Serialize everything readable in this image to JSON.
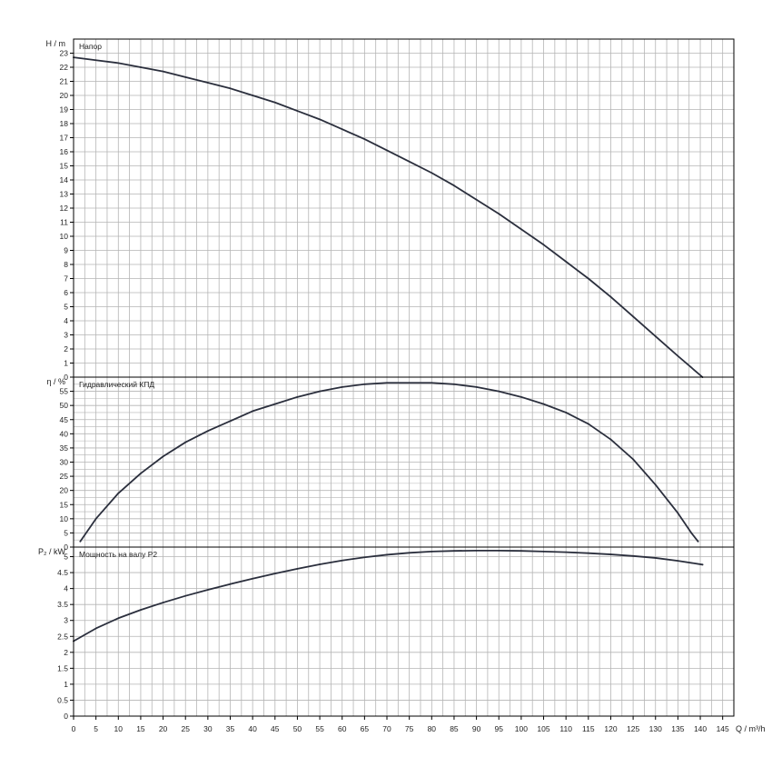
{
  "chart_data": {
    "type": "line",
    "x_axis": {
      "label": "Q / m³/h",
      "range": [
        0,
        145
      ],
      "ticks": [
        0,
        5,
        10,
        15,
        20,
        25,
        30,
        35,
        40,
        45,
        50,
        55,
        60,
        65,
        70,
        75,
        80,
        85,
        90,
        95,
        100,
        105,
        110,
        115,
        120,
        125,
        130,
        135,
        140,
        145
      ]
    },
    "grid": true,
    "colors": {
      "curve": "#2b2f3d",
      "grid": "#b5b5b5",
      "frame": "#000000"
    },
    "panels": [
      {
        "id": "head",
        "title": "Напор",
        "ylabel": "H / m",
        "ylim": [
          0,
          24
        ],
        "yticks": [
          0,
          1,
          2,
          3,
          4,
          5,
          6,
          7,
          8,
          9,
          10,
          11,
          12,
          13,
          14,
          15,
          16,
          17,
          18,
          19,
          20,
          21,
          22,
          23
        ],
        "series": {
          "x": [
            0,
            5,
            10,
            15,
            20,
            25,
            30,
            35,
            40,
            45,
            50,
            55,
            60,
            65,
            70,
            75,
            80,
            85,
            90,
            95,
            100,
            105,
            110,
            115,
            120,
            125,
            130,
            135,
            140.5
          ],
          "y": [
            22.7,
            22.5,
            22.3,
            22.0,
            21.7,
            21.3,
            20.9,
            20.5,
            20.0,
            19.5,
            18.9,
            18.3,
            17.6,
            16.9,
            16.1,
            15.3,
            14.5,
            13.6,
            12.6,
            11.6,
            10.5,
            9.4,
            8.2,
            7.0,
            5.7,
            4.3,
            2.9,
            1.5,
            0
          ]
        }
      },
      {
        "id": "efficiency",
        "title": "Гидравлический КПД",
        "ylabel": "η / %",
        "ylim": [
          0,
          60
        ],
        "yticks": [
          0,
          5,
          10,
          15,
          20,
          25,
          30,
          35,
          40,
          45,
          50,
          55
        ],
        "series": {
          "x": [
            1.5,
            5,
            10,
            15,
            20,
            25,
            30,
            35,
            40,
            45,
            50,
            55,
            60,
            65,
            70,
            75,
            80,
            85,
            90,
            95,
            100,
            105,
            110,
            115,
            120,
            125,
            130,
            135,
            138,
            139.5
          ],
          "y": [
            2,
            10,
            19,
            26,
            32,
            37,
            41,
            44.5,
            48,
            50.5,
            53,
            55,
            56.5,
            57.5,
            58,
            58,
            58,
            57.5,
            56.5,
            55,
            53,
            50.5,
            47.5,
            43.5,
            38,
            31,
            22,
            12,
            5,
            2
          ]
        }
      },
      {
        "id": "power",
        "title": "Мощность на валу P2",
        "ylabel": "P₂ / kW",
        "ylim": [
          0,
          5.3
        ],
        "yticks": [
          0,
          0.5,
          1,
          1.5,
          2,
          2.5,
          3,
          3.5,
          4,
          4.5,
          5
        ],
        "series": {
          "x": [
            0,
            5,
            10,
            15,
            20,
            25,
            30,
            35,
            40,
            45,
            50,
            55,
            60,
            65,
            70,
            75,
            80,
            85,
            90,
            95,
            100,
            105,
            110,
            115,
            120,
            125,
            130,
            135,
            140.5
          ],
          "y": [
            2.35,
            2.75,
            3.07,
            3.33,
            3.56,
            3.77,
            3.96,
            4.14,
            4.31,
            4.47,
            4.62,
            4.76,
            4.88,
            4.98,
            5.06,
            5.12,
            5.16,
            5.18,
            5.19,
            5.19,
            5.18,
            5.16,
            5.14,
            5.11,
            5.07,
            5.02,
            4.96,
            4.87,
            4.75
          ]
        }
      }
    ]
  }
}
